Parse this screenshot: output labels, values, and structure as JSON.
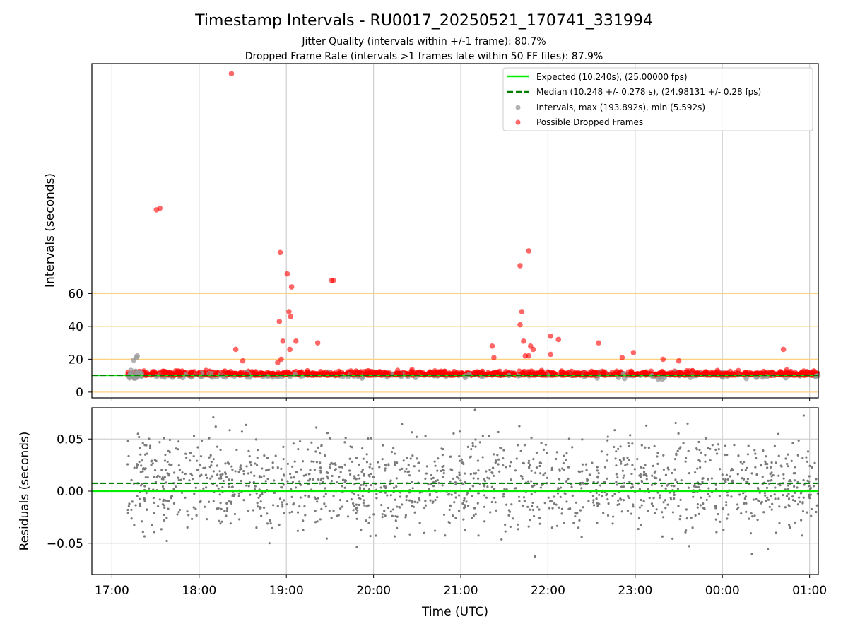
{
  "chart_data": {
    "type": "scatter",
    "title": "Timestamp Intervals - RU0017_20250521_170741_331994",
    "subtitle_lines": [
      "Jitter Quality (intervals within +/-1 frame): 80.7%",
      "Dropped Frame Rate (intervals >1 frames late within 50 FF files): 87.9%"
    ],
    "xlabel": "Time (UTC)",
    "x_ticks": [
      "17:00",
      "18:00",
      "19:00",
      "20:00",
      "21:00",
      "22:00",
      "23:00",
      "00:00",
      "01:00"
    ],
    "x_range_hours": [
      16.77,
      25.1
    ],
    "colors": {
      "expected": "#00ee00",
      "median": "#008000",
      "intervals": "#999999",
      "dropped": "#ff0000",
      "threshold": "#ffd27f",
      "residual_points": "#7a7a7a",
      "grid": "#d0d0d0"
    },
    "top_panel": {
      "ylabel": "Intervals (seconds)",
      "y_ticks": [
        "0",
        "20",
        "40",
        "60"
      ],
      "y_tick_values": [
        0,
        20,
        40,
        60
      ],
      "y_range": [
        -3.5,
        200
      ],
      "threshold_lines": [
        0,
        20,
        40,
        60
      ],
      "expected_interval": 10.24,
      "median_interval": 10.248,
      "legend": {
        "position": "top-right",
        "entries": [
          "Expected (10.240s), (25.00000 fps)",
          "Median (10.248 +/- 0.278 s), (24.98131 +/- 0.28 fps)",
          "Intervals, max (193.892s), min (5.592s)",
          "Possible Dropped Frames"
        ]
      },
      "outliers": [
        {
          "x": 17.51,
          "y": 111
        },
        {
          "x": 17.55,
          "y": 112
        },
        {
          "x": 18.37,
          "y": 193.9
        },
        {
          "x": 18.93,
          "y": 85
        },
        {
          "x": 19.01,
          "y": 72
        },
        {
          "x": 19.06,
          "y": 64
        },
        {
          "x": 19.52,
          "y": 68
        },
        {
          "x": 19.54,
          "y": 68
        },
        {
          "x": 21.68,
          "y": 77
        },
        {
          "x": 21.78,
          "y": 86
        },
        {
          "x": 19.03,
          "y": 49
        },
        {
          "x": 19.05,
          "y": 46
        },
        {
          "x": 21.7,
          "y": 49
        },
        {
          "x": 18.92,
          "y": 43
        },
        {
          "x": 21.68,
          "y": 41
        },
        {
          "x": 19.36,
          "y": 30
        },
        {
          "x": 21.72,
          "y": 31
        },
        {
          "x": 18.96,
          "y": 31
        },
        {
          "x": 19.11,
          "y": 31
        },
        {
          "x": 21.36,
          "y": 28
        },
        {
          "x": 22.03,
          "y": 34
        },
        {
          "x": 22.12,
          "y": 32
        },
        {
          "x": 22.58,
          "y": 30
        },
        {
          "x": 21.8,
          "y": 28
        },
        {
          "x": 21.83,
          "y": 26
        },
        {
          "x": 18.42,
          "y": 26
        },
        {
          "x": 19.04,
          "y": 26
        },
        {
          "x": 24.7,
          "y": 26
        },
        {
          "x": 21.74,
          "y": 22
        },
        {
          "x": 21.78,
          "y": 22
        },
        {
          "x": 22.03,
          "y": 23
        },
        {
          "x": 22.98,
          "y": 24
        },
        {
          "x": 22.85,
          "y": 21
        },
        {
          "x": 21.38,
          "y": 21
        },
        {
          "x": 23.32,
          "y": 20
        },
        {
          "x": 23.5,
          "y": 19
        },
        {
          "x": 18.94,
          "y": 20
        },
        {
          "x": 18.5,
          "y": 19
        },
        {
          "x": 18.9,
          "y": 18
        },
        {
          "x": 17.28,
          "y": 21
        },
        {
          "x": 17.29,
          "y": 22
        },
        {
          "x": 17.25,
          "y": 19.5
        }
      ]
    },
    "bottom_panel": {
      "ylabel": "Residuals (seconds)",
      "y_ticks": [
        "0.05",
        "0.00",
        "−0.05"
      ],
      "y_tick_values": [
        0.05,
        0.0,
        -0.05
      ],
      "y_range": [
        -0.08,
        0.08
      ],
      "expected_residual": 0.0,
      "median_residual": 0.0075,
      "residual_spread": 0.025
    }
  }
}
